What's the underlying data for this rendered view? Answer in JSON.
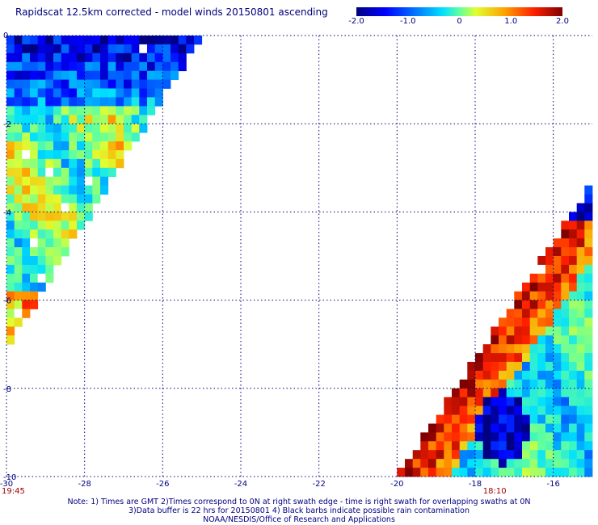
{
  "title": "Rapidscat 12.5km corrected - model winds 20150801 ascending",
  "colorbar": {
    "ticks": [
      {
        "label": "-2.0",
        "value": -2.0
      },
      {
        "label": "-1.0",
        "value": -1.0
      },
      {
        "label": "0",
        "value": 0
      },
      {
        "label": "1.0",
        "value": 1.0
      },
      {
        "label": "2.0",
        "value": 2.0
      }
    ],
    "range": [
      -2.0,
      2.0
    ],
    "colors": [
      "#000080",
      "#0000ff",
      "#0070ff",
      "#00e0ff",
      "#60ffa0",
      "#e0ff30",
      "#ffa000",
      "#ff2000",
      "#800000"
    ]
  },
  "map": {
    "lon_range": [
      -30,
      -15
    ],
    "lat_range": [
      -10,
      0
    ],
    "x_ticks": [
      {
        "label": "-30",
        "value": -30
      },
      {
        "label": "-28",
        "value": -28
      },
      {
        "label": "-26",
        "value": -26
      },
      {
        "label": "-24",
        "value": -24
      },
      {
        "label": "-22",
        "value": -22
      },
      {
        "label": "-20",
        "value": -20
      },
      {
        "label": "-18",
        "value": -18
      },
      {
        "label": "-16",
        "value": -16
      }
    ],
    "y_ticks": [
      {
        "label": "0",
        "value": 0
      },
      {
        "label": "-2",
        "value": -2
      },
      {
        "label": "-4",
        "value": -4
      },
      {
        "label": "-6",
        "value": -6
      },
      {
        "label": "-8",
        "value": -8
      },
      {
        "label": "-10",
        "value": -10
      }
    ],
    "time_labels": [
      {
        "label": "19:45",
        "lon": -30
      },
      {
        "label": "18:10",
        "lon": -17.5
      }
    ],
    "grid": "dotted",
    "swaths": [
      {
        "name": "",
        "polygon": [
          [
            -30,
            0
          ],
          [
            -25,
            0
          ],
          [
            -30,
            -7.1
          ]
        ],
        "dominant": "blue near 0 to -2, green/yellow with orange patches below"
      },
      {
        "name": "",
        "polygon": [
          [
            -15,
            -3.3
          ],
          [
            -15,
            -10
          ],
          [
            -20,
            -10
          ]
        ],
        "dominant": "orange/red along western edge, cyan/green interior, dark blue patch near -17.3,-9"
      }
    ]
  },
  "notes": {
    "line1": "Note: 1) Times are GMT 2)Times correspond to 0N at right swath edge - time is right swath for overlapping swaths at 0N",
    "line2": "3)Data buffer is 22 hrs for 20150801 4) Black barbs indicate possible rain contamination",
    "line3": "NOAA/NESDIS/Office of Research and Applications"
  }
}
